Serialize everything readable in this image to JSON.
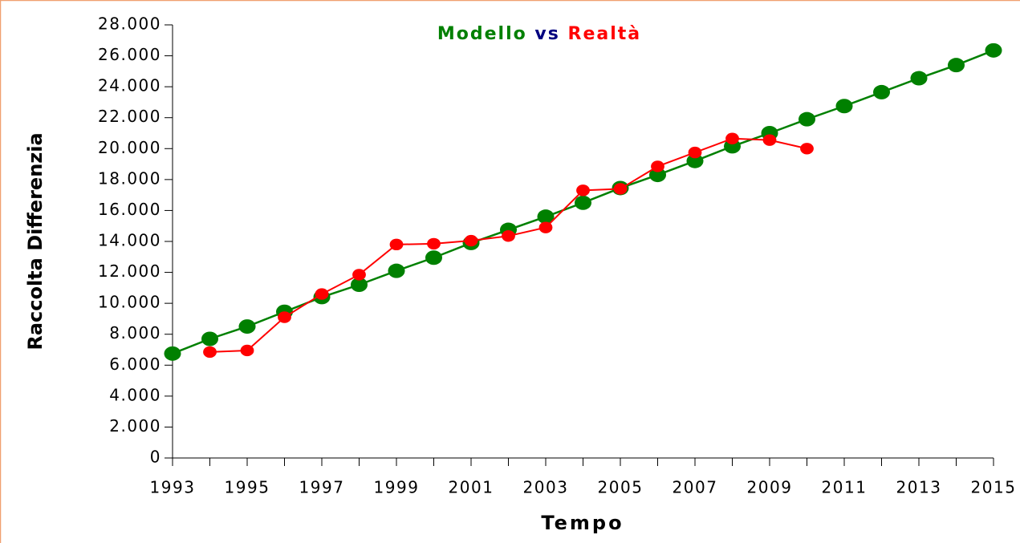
{
  "chart_data": {
    "type": "line",
    "title": [
      {
        "text": "Modello",
        "color": "#008000"
      },
      {
        "text": "vs",
        "color": "#000080"
      },
      {
        "text": "Realtà",
        "color": "#ff0000"
      }
    ],
    "xlabel": "Tempo",
    "ylabel": "Raccolta Differenzia",
    "x": [
      1993,
      1994,
      1995,
      1996,
      1997,
      1998,
      1999,
      2000,
      2001,
      2002,
      2003,
      2004,
      2005,
      2006,
      2007,
      2008,
      2009,
      2010,
      2011,
      2012,
      2013,
      2014,
      2015
    ],
    "series": [
      {
        "color": "#008000",
        "values": [
          6750,
          7700,
          8500,
          9450,
          10400,
          11200,
          12100,
          12950,
          13900,
          14750,
          15600,
          16500,
          17450,
          18300,
          19200,
          20150,
          21000,
          21900,
          22750,
          23650,
          24550,
          25400,
          26350
        ]
      },
      {
        "color": "#ff0000",
        "values": [
          null,
          6850,
          6950,
          9100,
          10600,
          11850,
          13800,
          13850,
          14050,
          14350,
          14900,
          17300,
          17400,
          18850,
          19750,
          20650,
          20550,
          20000,
          null,
          null,
          null,
          null,
          null
        ]
      }
    ],
    "xlim": [
      1993,
      2015
    ],
    "xticks": [
      1993,
      1995,
      1997,
      1999,
      2001,
      2003,
      2005,
      2007,
      2009,
      2011,
      2013,
      2015
    ],
    "ylim": [
      0,
      28000
    ],
    "yticks": [
      0,
      {
        "value": 2000,
        "label": "2.000"
      },
      {
        "value": 4000,
        "label": "4.000"
      },
      {
        "value": 6000,
        "label": "6.000"
      },
      {
        "value": 8000,
        "label": "8.000"
      },
      {
        "value": 10000,
        "label": "10.000"
      },
      {
        "value": 12000,
        "label": "12.000"
      },
      {
        "value": 14000,
        "label": "14.000"
      },
      {
        "value": 16000,
        "label": "16.000"
      },
      {
        "value": 18000,
        "label": "18.000"
      },
      {
        "value": 20000,
        "label": "20.000"
      },
      {
        "value": 22000,
        "label": "22.000"
      },
      {
        "value": 24000,
        "label": "24.000"
      },
      {
        "value": 26000,
        "label": "26.000"
      },
      {
        "value": 28000,
        "label": "28.000"
      }
    ],
    "grid": false
  }
}
